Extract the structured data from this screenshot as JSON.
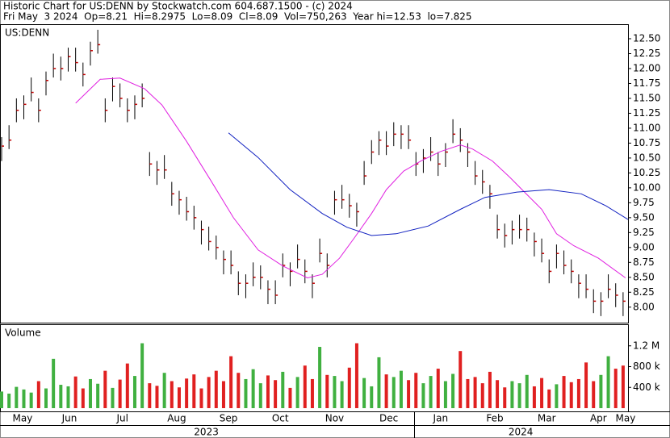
{
  "header": {
    "line1": "Historic Chart for US:DENN by Stockwatch.com 604.687.1500 - (c) 2024",
    "line2": "Fri May  3 2024  Op=8.21  Hi=8.2975  Lo=8.09  Cl=8.09  Vol=750,263  Year hi=12.53  lo=7.825"
  },
  "chart_data": [
    {
      "type": "ohlc",
      "title": "US:DENN",
      "colors": {
        "bar": "#000000",
        "close": "#c00000"
      },
      "x": [
        0,
        3,
        6,
        9,
        12,
        15,
        18,
        21,
        24,
        27,
        30,
        33,
        36,
        39,
        42,
        45,
        48,
        51,
        54,
        57,
        60,
        63,
        66,
        69,
        72,
        75,
        78,
        81,
        84,
        87,
        90,
        93,
        96,
        99,
        102,
        105,
        108,
        111,
        114,
        117,
        120,
        123,
        126,
        129,
        132,
        135,
        138,
        141,
        144,
        147,
        150,
        153,
        156,
        159,
        162,
        165,
        168,
        171,
        174,
        177,
        180,
        183,
        186,
        189,
        192,
        195,
        198,
        201,
        204,
        207,
        210,
        213,
        216,
        219,
        222,
        225,
        228,
        231,
        234,
        237,
        240,
        243,
        246,
        249,
        252
      ],
      "high": [
        10.85,
        11.05,
        11.5,
        11.55,
        11.85,
        11.5,
        11.95,
        12.25,
        12.2,
        12.35,
        12.35,
        12.1,
        12.45,
        12.65,
        11.5,
        11.85,
        11.75,
        11.5,
        11.55,
        11.75,
        10.6,
        10.45,
        10.55,
        10.1,
        9.95,
        9.85,
        9.7,
        9.45,
        9.35,
        9.2,
        8.95,
        8.95,
        8.6,
        8.55,
        8.75,
        8.7,
        8.45,
        8.45,
        8.9,
        8.75,
        9.05,
        8.8,
        8.55,
        9.15,
        8.9,
        9.95,
        10.05,
        9.9,
        9.75,
        10.45,
        10.8,
        10.95,
        10.95,
        11.1,
        11.05,
        11.05,
        10.6,
        10.65,
        10.85,
        10.6,
        10.75,
        11.15,
        11.0,
        10.75,
        10.45,
        10.3,
        10.05,
        9.55,
        9.4,
        9.45,
        9.55,
        9.5,
        9.25,
        9.15,
        8.8,
        9.05,
        8.95,
        8.8,
        8.55,
        8.55,
        8.3,
        8.25,
        8.55,
        8.4,
        8.25
      ],
      "low": [
        10.45,
        10.65,
        11.1,
        11.15,
        11.45,
        11.1,
        11.55,
        11.85,
        11.8,
        11.95,
        11.95,
        11.7,
        12.05,
        12.25,
        11.1,
        11.45,
        11.35,
        11.1,
        11.15,
        11.35,
        10.2,
        10.05,
        10.15,
        9.7,
        9.55,
        9.45,
        9.3,
        9.05,
        8.95,
        8.8,
        8.55,
        8.55,
        8.2,
        8.15,
        8.35,
        8.3,
        8.05,
        8.05,
        8.5,
        8.35,
        8.65,
        8.4,
        8.15,
        8.75,
        8.5,
        9.55,
        9.65,
        9.5,
        9.35,
        10.05,
        10.4,
        10.55,
        10.55,
        10.7,
        10.65,
        10.65,
        10.2,
        10.25,
        10.45,
        10.2,
        10.35,
        10.75,
        10.6,
        10.35,
        10.05,
        9.9,
        9.65,
        9.15,
        9.0,
        9.05,
        9.15,
        9.1,
        8.85,
        8.75,
        8.4,
        8.65,
        8.55,
        8.4,
        8.15,
        8.15,
        7.9,
        7.85,
        8.15,
        8.0,
        7.85
      ],
      "close": [
        10.7,
        10.8,
        11.3,
        11.4,
        11.6,
        11.3,
        11.8,
        12.0,
        12.0,
        12.2,
        12.1,
        11.9,
        12.3,
        12.4,
        11.3,
        11.7,
        11.5,
        11.3,
        11.4,
        11.5,
        10.4,
        10.3,
        10.3,
        9.9,
        9.8,
        9.6,
        9.5,
        9.3,
        9.1,
        9.0,
        8.8,
        8.7,
        8.4,
        8.4,
        8.5,
        8.5,
        8.3,
        8.2,
        8.7,
        8.6,
        8.8,
        8.6,
        8.4,
        8.9,
        8.7,
        9.8,
        9.8,
        9.7,
        9.6,
        10.2,
        10.6,
        10.8,
        10.7,
        10.9,
        10.9,
        10.8,
        10.4,
        10.5,
        10.6,
        10.4,
        10.6,
        10.9,
        10.8,
        10.6,
        10.2,
        10.1,
        9.9,
        9.3,
        9.2,
        9.3,
        9.3,
        9.3,
        9.1,
        8.9,
        8.6,
        8.9,
        8.7,
        8.6,
        8.4,
        8.3,
        8.1,
        8.1,
        8.3,
        8.2,
        8.1
      ],
      "lines": [
        {
          "color": "#e020e0",
          "x": [
            30,
            40,
            48,
            58,
            65,
            75,
            85,
            94,
            104,
            114,
            124,
            130,
            137,
            143,
            150,
            156,
            163,
            170,
            178,
            186,
            191,
            199,
            206,
            212,
            219,
            225,
            232,
            242,
            253
          ],
          "values": [
            11.42,
            11.82,
            11.84,
            11.66,
            11.39,
            10.78,
            10.11,
            9.5,
            8.96,
            8.69,
            8.49,
            8.55,
            8.82,
            9.16,
            9.57,
            9.97,
            10.28,
            10.45,
            10.61,
            10.72,
            10.65,
            10.45,
            10.18,
            9.93,
            9.64,
            9.23,
            9.03,
            8.82,
            8.49
          ]
        },
        {
          "color": "#1020c0",
          "x": [
            92,
            104,
            117,
            130,
            140,
            150,
            160,
            173,
            186,
            196,
            209,
            222,
            235,
            245,
            254
          ],
          "values": [
            10.92,
            10.51,
            9.97,
            9.57,
            9.34,
            9.2,
            9.23,
            9.36,
            9.64,
            9.84,
            9.93,
            9.97,
            9.9,
            9.7,
            9.47
          ]
        }
      ],
      "xlim": [
        0,
        254
      ],
      "ylim": [
        7.74,
        12.73
      ],
      "yticks": [
        {
          "value": 8,
          "label": "8.00"
        },
        {
          "value": 8.25,
          "label": "8.25"
        },
        {
          "value": 8.5,
          "label": "8.50"
        },
        {
          "value": 8.75,
          "label": "8.75"
        },
        {
          "value": 9,
          "label": "9.00"
        },
        {
          "value": 9.25,
          "label": "9.25"
        },
        {
          "value": 9.5,
          "label": "9.50"
        },
        {
          "value": 9.75,
          "label": "9.75"
        },
        {
          "value": 10,
          "label": "10.00"
        },
        {
          "value": 10.25,
          "label": "10.25"
        },
        {
          "value": 10.5,
          "label": "10.50"
        },
        {
          "value": 10.75,
          "label": "10.75"
        },
        {
          "value": 11,
          "label": "11.00"
        },
        {
          "value": 11.25,
          "label": "11.25"
        },
        {
          "value": 11.5,
          "label": "11.50"
        },
        {
          "value": 11.75,
          "label": "11.75"
        },
        {
          "value": 12,
          "label": "12.00"
        },
        {
          "value": 12.25,
          "label": "12.25"
        },
        {
          "value": 12.5,
          "label": "12.50"
        }
      ]
    },
    {
      "type": "bar",
      "title": "Volume",
      "colors": {
        "up": "#40b040",
        "down": "#e02020"
      },
      "values": [
        320000,
        280000,
        410000,
        360000,
        300000,
        520000,
        380000,
        950000,
        450000,
        420000,
        610000,
        380000,
        560000,
        470000,
        720000,
        390000,
        550000,
        860000,
        620000,
        1250000,
        480000,
        430000,
        680000,
        520000,
        400000,
        570000,
        650000,
        380000,
        600000,
        720000,
        520000,
        1000000,
        680000,
        560000,
        750000,
        480000,
        630000,
        540000,
        700000,
        390000,
        600000,
        820000,
        560000,
        1180000,
        640000,
        620000,
        520000,
        780000,
        1250000,
        580000,
        420000,
        980000,
        650000,
        600000,
        720000,
        540000,
        680000,
        480000,
        620000,
        760000,
        520000,
        660000,
        1100000,
        560000,
        600000,
        480000,
        700000,
        540000,
        400000,
        520000,
        480000,
        640000,
        420000,
        580000,
        360000,
        460000,
        620000,
        500000,
        560000,
        880000,
        520000,
        640000,
        1000000,
        760000,
        820000
      ],
      "ylim": [
        0,
        1600000
      ],
      "yticks": [
        {
          "value": 400000,
          "label": "400 k"
        },
        {
          "value": 800000,
          "label": "800 k"
        },
        {
          "value": 1200000,
          "label": "1.2 M"
        }
      ],
      "xticks": [
        {
          "value": 8.5,
          "label": "May"
        },
        {
          "value": 27.5,
          "label": "Jun"
        },
        {
          "value": 49,
          "label": "Jul"
        },
        {
          "value": 71,
          "label": "Aug"
        },
        {
          "value": 92,
          "label": "Sep"
        },
        {
          "value": 113,
          "label": "Oct"
        },
        {
          "value": 135,
          "label": "Nov"
        },
        {
          "value": 157,
          "label": "Dec"
        },
        {
          "value": 178,
          "label": "Jan"
        },
        {
          "value": 200,
          "label": "Feb"
        },
        {
          "value": 221,
          "label": "Mar"
        },
        {
          "value": 242,
          "label": "Apr"
        },
        {
          "value": 253,
          "label": "May"
        }
      ],
      "years": [
        {
          "value": 83,
          "label": "2023"
        },
        {
          "value": 210.5,
          "label": "2024"
        }
      ]
    }
  ]
}
